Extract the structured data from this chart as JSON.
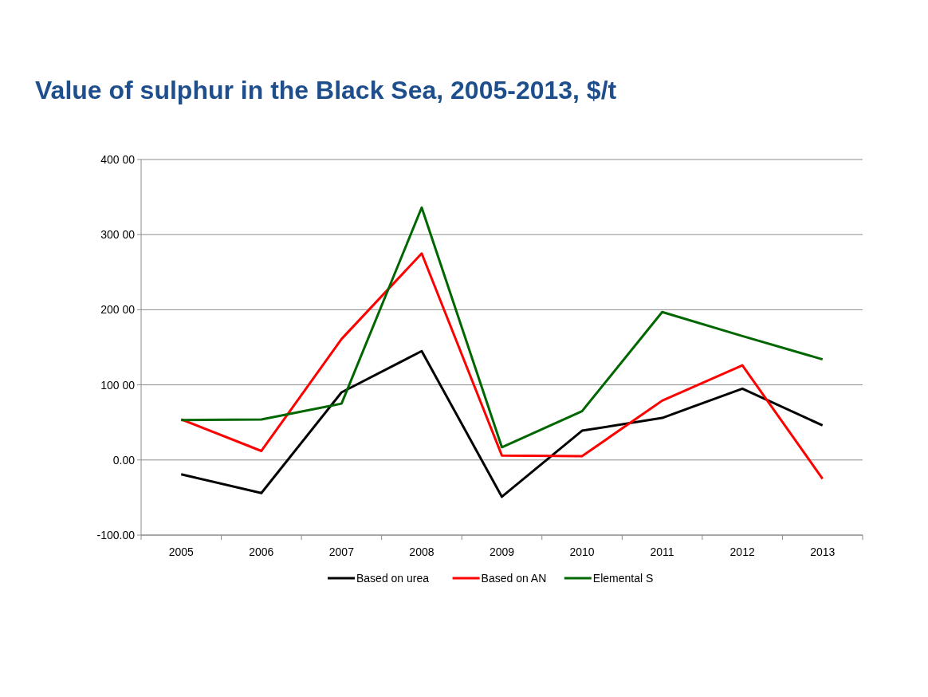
{
  "chart_data": {
    "type": "line",
    "title": "Value of sulphur in the Black Sea, 2005-2013, $/t",
    "categories": [
      "2005",
      "2006",
      "2007",
      "2008",
      "2009",
      "2010",
      "2011",
      "2012",
      "2013"
    ],
    "series": [
      {
        "name": "Based on urea",
        "color": "#000000",
        "values": [
          -19,
          -44,
          90,
          145,
          -49,
          39,
          56,
          95,
          46
        ]
      },
      {
        "name": "Based on AN",
        "color": "#ff0000",
        "values": [
          54,
          12,
          161,
          275,
          6,
          5,
          79,
          126,
          -25
        ]
      },
      {
        "name": "Elemental S",
        "color": "#006600",
        "values": [
          53,
          54,
          75,
          336,
          17,
          65,
          197,
          165,
          134
        ]
      }
    ],
    "ylim": [
      -100,
      400
    ],
    "yticks": [
      {
        "value": -100,
        "label": "-100.00"
      },
      {
        "value": 0,
        "label": "0.00"
      },
      {
        "value": 100,
        "label": "100 00"
      },
      {
        "value": 200,
        "label": "200 00"
      },
      {
        "value": 300,
        "label": "300 00"
      },
      {
        "value": 400,
        "label": "400 00"
      }
    ],
    "grid": "y",
    "legend": "bottom",
    "marker": "none",
    "line_style": "solid"
  }
}
